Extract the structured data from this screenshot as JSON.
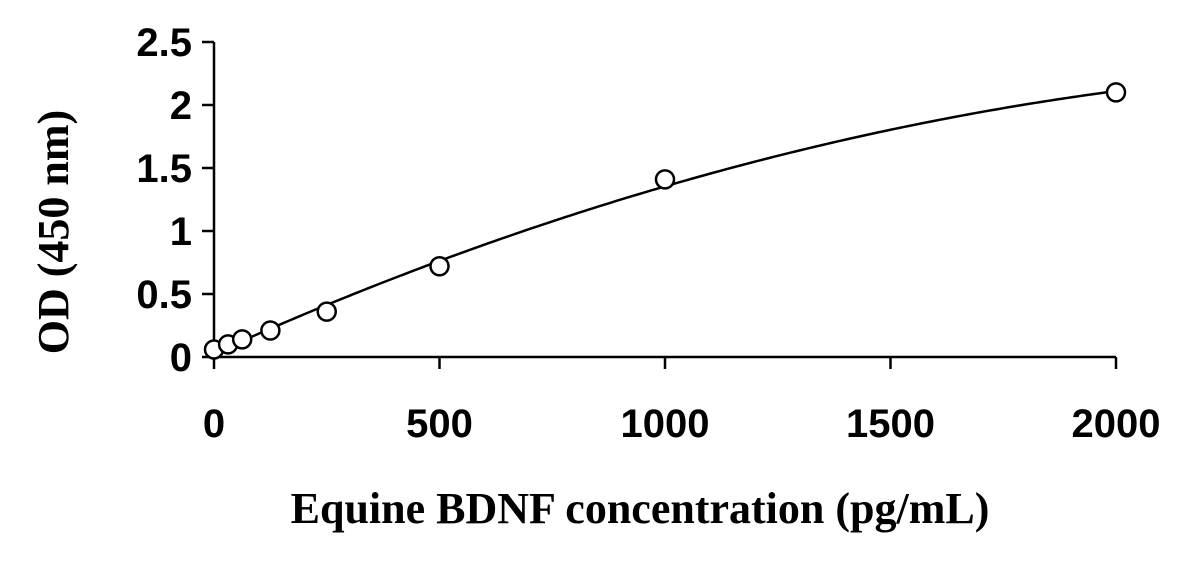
{
  "chart_data": {
    "type": "scatter",
    "xlabel": "Equine BDNF concentration (pg/mL)",
    "ylabel": "OD (450 nm)",
    "xlim": [
      0,
      2000
    ],
    "ylim": [
      0,
      2.5
    ],
    "x_ticks": [
      0,
      500,
      1000,
      1500,
      2000
    ],
    "x_tick_labels": [
      "0",
      "500",
      "1000",
      "1500",
      "2000"
    ],
    "y_ticks": [
      0,
      0.5,
      1,
      1.5,
      2,
      2.5
    ],
    "y_tick_labels": [
      "0",
      "0.5",
      "1",
      "1.5",
      "2",
      "2.5"
    ],
    "grid": false,
    "series": [
      {
        "x": [
          0,
          31.25,
          62.5,
          125,
          250,
          500,
          1000,
          2000
        ],
        "y": [
          0.06,
          0.1,
          0.14,
          0.21,
          0.36,
          0.72,
          1.41,
          2.1
        ],
        "marker": "open-circle",
        "fit_curve": true
      }
    ],
    "colors": {
      "line": "#000000",
      "marker_fill": "#ffffff"
    }
  }
}
